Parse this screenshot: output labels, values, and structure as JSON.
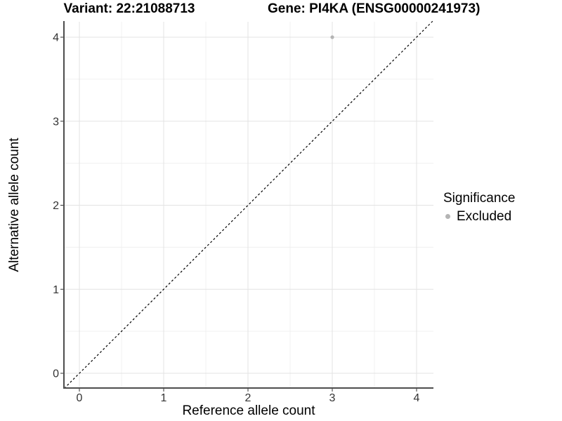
{
  "chart_data": {
    "type": "scatter",
    "titles": {
      "left": "Variant: 22:21088713",
      "right": "Gene: PI4KA (ENSG00000241973)"
    },
    "xlabel": "Reference allele count",
    "ylabel": "Alternative allele count",
    "xlim": [
      -0.18,
      4.2
    ],
    "ylim": [
      -0.18,
      4.19
    ],
    "xticks": [
      0,
      1,
      2,
      3,
      4
    ],
    "yticks": [
      0,
      1,
      2,
      3,
      4
    ],
    "minor_ticks": [
      0.5,
      1.5,
      2.5,
      3.5
    ],
    "grid": "major-and-minor-on",
    "reference_line": {
      "type": "identity-diagonal",
      "style": "dashed",
      "color": "#000000"
    },
    "series": [
      {
        "name": "Excluded",
        "color": "#b4b4b4",
        "points": [
          {
            "x": 3,
            "y": 4
          }
        ]
      }
    ],
    "legend": {
      "title": "Significance",
      "position": "right",
      "items": [
        {
          "label": "Excluded",
          "color": "#b4b4b4"
        }
      ]
    },
    "colors": {
      "grid_major": "#e3e3e3",
      "grid_minor": "#f0f0f0",
      "axis_line": "#4d4d4d",
      "tick_text": "#333333",
      "point": "#b4b4b4"
    }
  }
}
